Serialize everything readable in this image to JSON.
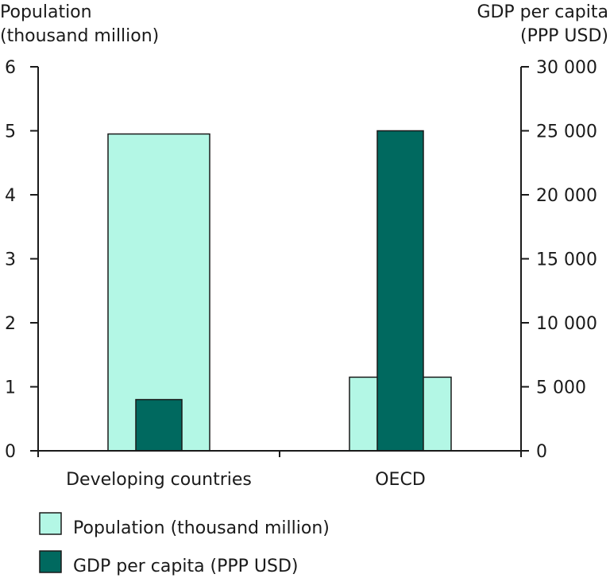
{
  "chart_data": {
    "type": "bar",
    "categories": [
      "Developing countries",
      "OECD"
    ],
    "series": [
      {
        "name": "Population (thousand million)",
        "axis": "left",
        "values": [
          4.95,
          1.15
        ],
        "color": "#b3f7e5"
      },
      {
        "name": "GDP per capita (PPP USD)",
        "axis": "right",
        "values": [
          4000,
          25000
        ],
        "color": "#00695f"
      }
    ],
    "left_axis": {
      "title_lines": [
        "Population",
        "(thousand million)"
      ],
      "ylim": [
        0,
        6
      ],
      "ticks": [
        0,
        1,
        2,
        3,
        4,
        5,
        6
      ],
      "tick_labels": [
        "0",
        "1",
        "2",
        "3",
        "4",
        "5",
        "6"
      ]
    },
    "right_axis": {
      "title_lines": [
        "GDP per capita",
        "(PPP USD)"
      ],
      "ylim": [
        0,
        30000
      ],
      "ticks": [
        0,
        5000,
        10000,
        15000,
        20000,
        25000,
        30000
      ],
      "tick_labels": [
        "0",
        "5 000",
        "10 000",
        "15 000",
        "20 000",
        "25 000",
        "30 000"
      ]
    },
    "grid": false,
    "legend_position": "bottom-left"
  }
}
